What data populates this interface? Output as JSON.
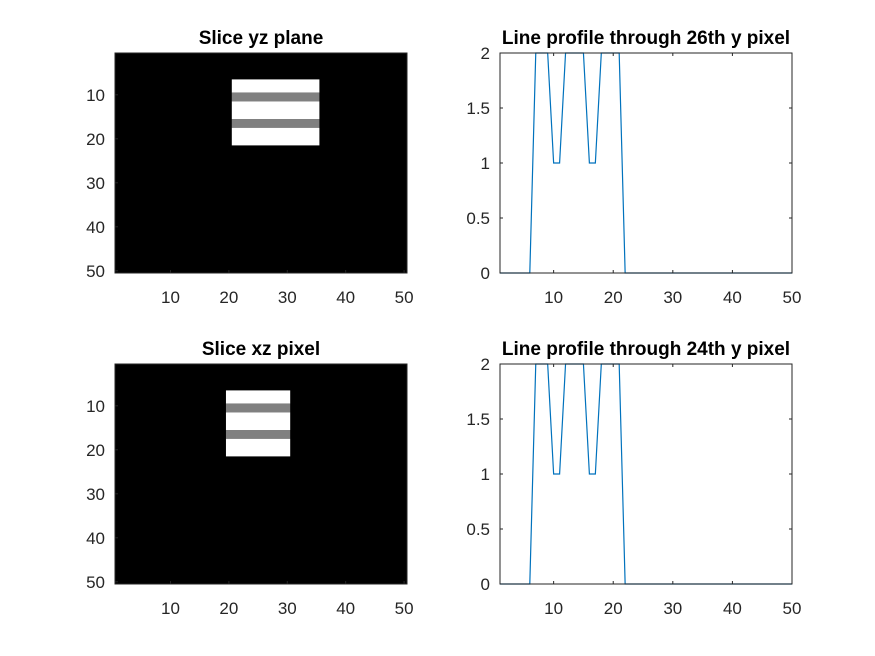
{
  "chart_data": [
    {
      "type": "heatmap",
      "title": "Slice yz plane",
      "colormap": "gray",
      "color_range": [
        0,
        2
      ],
      "x_range": [
        0.5,
        50.5
      ],
      "y_range": [
        0.5,
        50.5
      ],
      "y_direction": "reversed",
      "background_value": 0,
      "blocks": [
        {
          "x": [
            21,
            35
          ],
          "y": [
            7,
            9
          ],
          "value": 2
        },
        {
          "x": [
            21,
            35
          ],
          "y": [
            10,
            11
          ],
          "value": 1
        },
        {
          "x": [
            21,
            35
          ],
          "y": [
            12,
            15
          ],
          "value": 2
        },
        {
          "x": [
            21,
            35
          ],
          "y": [
            16,
            17
          ],
          "value": 1
        },
        {
          "x": [
            21,
            35
          ],
          "y": [
            18,
            21
          ],
          "value": 2
        }
      ],
      "xticks": [
        10,
        20,
        30,
        40,
        50
      ],
      "yticks": [
        10,
        20,
        30,
        40,
        50
      ]
    },
    {
      "type": "line",
      "title": "Line profile through 26th y pixel",
      "color": "#0072BD",
      "x": [
        1,
        6,
        7,
        9,
        10,
        11,
        12,
        15,
        16,
        17,
        18,
        21,
        22,
        50
      ],
      "y": [
        0,
        0,
        2,
        2,
        1,
        1,
        2,
        2,
        1,
        1,
        2,
        2,
        0,
        0
      ],
      "xlim": [
        1,
        50
      ],
      "ylim": [
        0,
        2
      ],
      "xticks": [
        10,
        20,
        30,
        40,
        50
      ],
      "yticks": [
        "0",
        "0.5",
        "1",
        "1.5",
        "2"
      ]
    },
    {
      "type": "heatmap",
      "title": "Slice xz pixel",
      "colormap": "gray",
      "color_range": [
        0,
        2
      ],
      "x_range": [
        0.5,
        50.5
      ],
      "y_range": [
        0.5,
        50.5
      ],
      "y_direction": "reversed",
      "background_value": 0,
      "blocks": [
        {
          "x": [
            20,
            30
          ],
          "y": [
            7,
            9
          ],
          "value": 2
        },
        {
          "x": [
            20,
            30
          ],
          "y": [
            10,
            11
          ],
          "value": 1
        },
        {
          "x": [
            20,
            30
          ],
          "y": [
            12,
            15
          ],
          "value": 2
        },
        {
          "x": [
            20,
            30
          ],
          "y": [
            16,
            17
          ],
          "value": 1
        },
        {
          "x": [
            20,
            30
          ],
          "y": [
            18,
            21
          ],
          "value": 2
        }
      ],
      "xticks": [
        10,
        20,
        30,
        40,
        50
      ],
      "yticks": [
        10,
        20,
        30,
        40,
        50
      ]
    },
    {
      "type": "line",
      "title": "Line profile through 24th y pixel",
      "color": "#0072BD",
      "x": [
        1,
        6,
        7,
        9,
        10,
        11,
        12,
        15,
        16,
        17,
        18,
        21,
        22,
        50
      ],
      "y": [
        0,
        0,
        2,
        2,
        1,
        1,
        2,
        2,
        1,
        1,
        2,
        2,
        0,
        0
      ],
      "xlim": [
        1,
        50
      ],
      "ylim": [
        0,
        2
      ],
      "xticks": [
        10,
        20,
        30,
        40,
        50
      ],
      "yticks": [
        "0",
        "0.5",
        "1",
        "1.5",
        "2"
      ]
    }
  ]
}
